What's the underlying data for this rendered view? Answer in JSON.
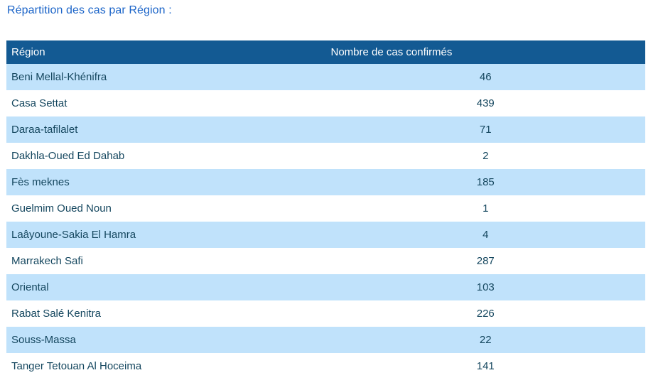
{
  "title": "Répartition des cas par Région :",
  "table": {
    "headers": {
      "region": "Région",
      "cases": "Nombre de cas confirmés"
    },
    "rows": [
      {
        "region": "Beni Mellal-Khénifra",
        "cases": "46"
      },
      {
        "region": "Casa Settat",
        "cases": "439"
      },
      {
        "region": "Daraa-tafilalet",
        "cases": "71"
      },
      {
        "region": "Dakhla-Oued Ed Dahab",
        "cases": "2"
      },
      {
        "region": "Fès meknes",
        "cases": "185"
      },
      {
        "region": "Guelmim Oued Noun",
        "cases": "1"
      },
      {
        "region": "Laâyoune-Sakia El Hamra",
        "cases": "4"
      },
      {
        "region": "Marrakech Safi",
        "cases": "287"
      },
      {
        "region": "Oriental",
        "cases": "103"
      },
      {
        "region": "Rabat Salé Kenitra",
        "cases": "226"
      },
      {
        "region": "Souss-Massa",
        "cases": "22"
      },
      {
        "region": "Tanger Tetouan Al Hoceima",
        "cases": "141"
      }
    ]
  },
  "colors": {
    "title_text": "#1B64C8",
    "header_bg": "#135A93",
    "header_text": "#FFFFFF",
    "row_alt_bg": "#C0E2FB",
    "row_bg": "#FFFFFF",
    "cell_text": "#15475F"
  }
}
